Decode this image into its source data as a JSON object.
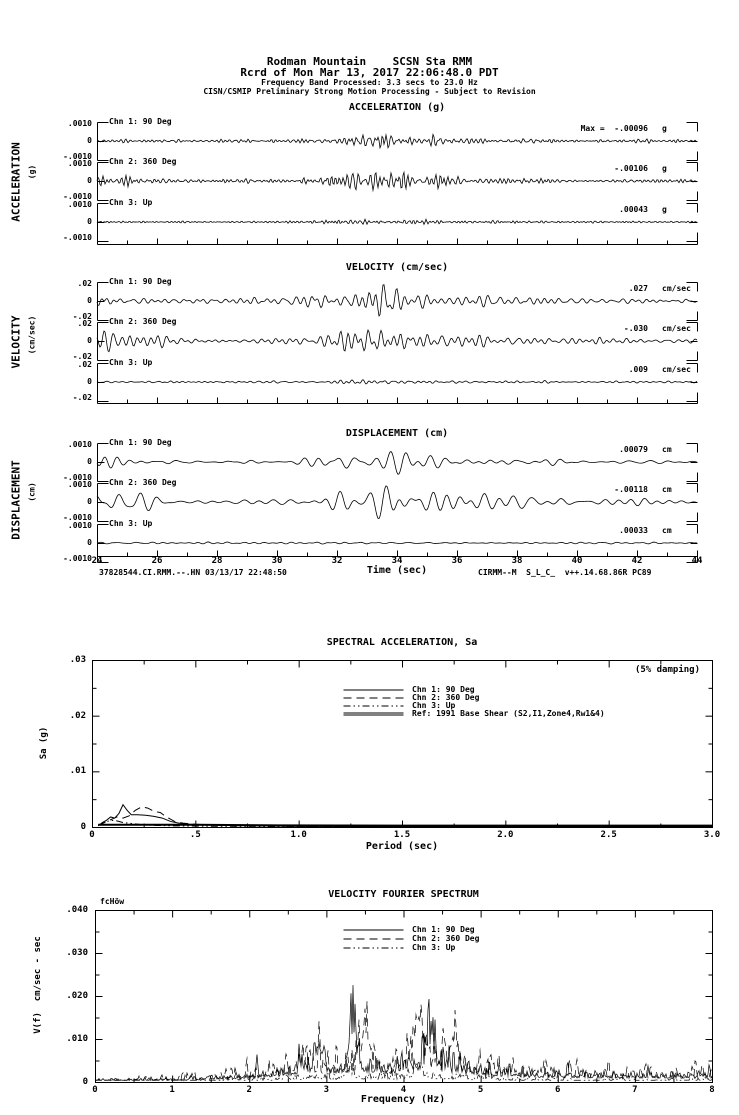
{
  "colors": {
    "background": "#ffffff",
    "ink": "#000000"
  },
  "header": {
    "line1": "Rodman Mountain    SCSN Sta RMM",
    "line2": "Rcrd of Mon Mar 13, 2017 22:06:48.0 PDT",
    "line3": "Frequency Band Processed: 3.3 secs to 23.0 Hz",
    "line4": "CISN/CSMIP Preliminary Strong Motion Processing - Subject to Revision"
  },
  "footer": {
    "left": "37828544.CI.RMM.--.HN 03/13/17 22:48:50",
    "right": "CIRMM--M  S_L_C_  v++.14.68.86R PC89"
  },
  "chart_data": [
    {
      "type": "line",
      "id": "acceleration",
      "title": "ACCELERATION (g)",
      "side_label": "ACCELERATION",
      "side_units": "(g)",
      "x_range": [
        24,
        44
      ],
      "y_range": [
        -0.001,
        0.001
      ],
      "y_tick_labels": [
        ".0010",
        "0",
        "-.0010"
      ],
      "channels": [
        {
          "label": "Chn 1: 90 Deg",
          "peak_text": "Max =  -.00096",
          "peak_value": -0.00096,
          "units": "g",
          "render": {
            "seed": 101,
            "amp": 11,
            "fmin": 70,
            "fmax": 180,
            "K": 60,
            "base": 0.25,
            "bursts": [
              [
                0.44,
                0.04,
                0.8
              ],
              [
                0.53,
                0.1,
                0.35
              ]
            ]
          }
        },
        {
          "label": "Chn 2: 360 Deg",
          "peak_text": "-.00106",
          "peak_value": -0.00106,
          "units": "g",
          "render": {
            "seed": 202,
            "amp": 13,
            "fmin": 70,
            "fmax": 180,
            "K": 60,
            "base": 0.25,
            "bursts": [
              [
                0.02,
                0.03,
                0.5
              ],
              [
                0.44,
                0.045,
                0.85
              ],
              [
                0.53,
                0.1,
                0.35
              ]
            ]
          }
        },
        {
          "label": "Chn 3: Up",
          "peak_text": ".00043",
          "peak_value": 0.00043,
          "units": "g",
          "render": {
            "seed": 303,
            "amp": 4.5,
            "fmin": 80,
            "fmax": 200,
            "K": 60,
            "base": 0.3,
            "bursts": [
              [
                0.44,
                0.05,
                0.55
              ],
              [
                0.53,
                0.1,
                0.25
              ]
            ]
          }
        }
      ]
    },
    {
      "type": "line",
      "id": "velocity",
      "title": "VELOCITY (cm/sec)",
      "side_label": "VELOCITY",
      "side_units": "(cm/sec)",
      "x_range": [
        24,
        44
      ],
      "y_range": [
        -0.02,
        0.02
      ],
      "y_tick_labels": [
        ".02",
        "0",
        "-.02"
      ],
      "channels": [
        {
          "label": "Chn 1: 90 Deg",
          "peak_text": ".027",
          "peak_value": 0.027,
          "units": "cm/sec",
          "render": {
            "seed": 404,
            "amp": 15,
            "fmin": 35,
            "fmax": 95,
            "K": 50,
            "base": 0.22,
            "bursts": [
              [
                0.005,
                0.015,
                0.9
              ],
              [
                0.44,
                0.05,
                0.85
              ],
              [
                0.55,
                0.12,
                0.4
              ]
            ]
          }
        },
        {
          "label": "Chn 2: 360 Deg",
          "peak_text": "-.030",
          "peak_value": -0.03,
          "units": "cm/sec",
          "render": {
            "seed": 505,
            "amp": 18,
            "fmin": 35,
            "fmax": 95,
            "K": 50,
            "base": 0.22,
            "bursts": [
              [
                0.02,
                0.05,
                0.75
              ],
              [
                0.45,
                0.05,
                0.9
              ],
              [
                0.56,
                0.12,
                0.45
              ]
            ]
          }
        },
        {
          "label": "Chn 3: Up",
          "peak_text": ".009",
          "peak_value": 0.009,
          "units": "cm/sec",
          "render": {
            "seed": 606,
            "amp": 5,
            "fmin": 40,
            "fmax": 110,
            "K": 50,
            "base": 0.3,
            "bursts": [
              [
                0.44,
                0.05,
                0.5
              ]
            ]
          }
        }
      ]
    },
    {
      "type": "line",
      "id": "displacement",
      "title": "DISPLACEMENT (cm)",
      "side_label": "DISPLACEMENT",
      "side_units": "(cm)",
      "x_range": [
        24,
        44
      ],
      "y_range": [
        -0.001,
        0.001
      ],
      "y_tick_labels": [
        ".0010",
        "0",
        "-.0010"
      ],
      "xlabel": "Time (sec)",
      "x_tick_labels": [
        "24",
        "26",
        "28",
        "30",
        "32",
        "34",
        "36",
        "38",
        "40",
        "42",
        "44"
      ],
      "channels": [
        {
          "label": "Chn 1: 90 Deg",
          "peak_text": ".00079",
          "peak_value": 0.00079,
          "units": "cm",
          "render": {
            "seed": 707,
            "amp": 13,
            "fmin": 20,
            "fmax": 55,
            "K": 36,
            "base": 0.22,
            "bursts": [
              [
                0.01,
                0.02,
                0.6
              ],
              [
                0.43,
                0.05,
                0.85
              ],
              [
                0.55,
                0.12,
                0.45
              ]
            ]
          }
        },
        {
          "label": "Chn 2: 360 Deg",
          "peak_text": "-.00118",
          "peak_value": -0.00118,
          "units": "cm",
          "render": {
            "seed": 808,
            "amp": 17,
            "fmin": 20,
            "fmax": 55,
            "K": 36,
            "base": 0.22,
            "bursts": [
              [
                0.02,
                0.05,
                0.7
              ],
              [
                0.45,
                0.05,
                0.9
              ],
              [
                0.57,
                0.12,
                0.45
              ]
            ]
          }
        },
        {
          "label": "Chn 3: Up",
          "peak_text": ".00033",
          "peak_value": 0.00033,
          "units": "cm",
          "render": {
            "seed": 909,
            "amp": 3,
            "fmin": 25,
            "fmax": 70,
            "K": 36,
            "base": 0.35,
            "bursts": [
              [
                0.44,
                0.06,
                0.45
              ]
            ]
          }
        }
      ]
    },
    {
      "type": "line",
      "id": "spectral-acceleration",
      "title": "SPECTRAL ACCELERATION, Sa",
      "damping_note": "(5% damping)",
      "ylabel": "Sa (g)",
      "xlabel": "Period (sec)",
      "xlim": [
        0,
        3
      ],
      "ylim": [
        0,
        0.03
      ],
      "x_tick_values": [
        0,
        0.5,
        1.0,
        1.5,
        2.0,
        2.5,
        3.0
      ],
      "x_tick_labels": [
        "0",
        ".5",
        "1.0",
        "1.5",
        "2.0",
        "2.5",
        "3.0"
      ],
      "y_tick_values": [
        0.03,
        0.02,
        0.01,
        0
      ],
      "y_tick_labels": [
        ".03",
        ".02",
        ".01",
        "0"
      ],
      "legend": [
        {
          "label": "Chn 1: 90 Deg",
          "style": "solid"
        },
        {
          "label": "Chn 2: 360 Deg",
          "style": "dashed"
        },
        {
          "label": "Chn 3: Up",
          "style": "dashdotdot"
        },
        {
          "label": "Ref: 1991 Base Shear (S2,I1,Zone4,Rw1&4)",
          "style": "double"
        }
      ],
      "series": [
        {
          "name": "Chn 1: 90 Deg",
          "style": "solid",
          "points": [
            [
              0.03,
              0.0002
            ],
            [
              0.05,
              0.0008
            ],
            [
              0.07,
              0.0012
            ],
            [
              0.09,
              0.0018
            ],
            [
              0.11,
              0.0016
            ],
            [
              0.13,
              0.0024
            ],
            [
              0.15,
              0.004
            ],
            [
              0.17,
              0.003
            ],
            [
              0.19,
              0.0022
            ],
            [
              0.22,
              0.0022
            ],
            [
              0.26,
              0.0021
            ],
            [
              0.3,
              0.0019
            ],
            [
              0.34,
              0.0016
            ],
            [
              0.38,
              0.001
            ],
            [
              0.42,
              0.0007
            ],
            [
              0.47,
              0.0005
            ],
            [
              0.55,
              0.0004
            ],
            [
              0.65,
              0.0003
            ],
            [
              0.8,
              0.0002
            ],
            [
              1.0,
              0.00012
            ],
            [
              1.5,
              6e-05
            ],
            [
              2.0,
              4e-05
            ],
            [
              3.0,
              3e-05
            ]
          ]
        },
        {
          "name": "Chn 2: 360 Deg",
          "style": "dashed",
          "points": [
            [
              0.03,
              0.0003
            ],
            [
              0.06,
              0.0008
            ],
            [
              0.09,
              0.0013
            ],
            [
              0.12,
              0.0018
            ],
            [
              0.15,
              0.0016
            ],
            [
              0.18,
              0.002
            ],
            [
              0.21,
              0.003
            ],
            [
              0.24,
              0.0036
            ],
            [
              0.27,
              0.0034
            ],
            [
              0.3,
              0.0028
            ],
            [
              0.33,
              0.0026
            ],
            [
              0.36,
              0.0018
            ],
            [
              0.4,
              0.001
            ],
            [
              0.44,
              0.0007
            ],
            [
              0.5,
              0.0005
            ],
            [
              0.6,
              0.0003
            ],
            [
              0.75,
              0.0002
            ],
            [
              1.0,
              0.00012
            ],
            [
              1.5,
              6e-05
            ],
            [
              2.0,
              4e-05
            ],
            [
              3.0,
              3e-05
            ]
          ]
        },
        {
          "name": "Chn 3: Up",
          "style": "dashdotdot",
          "points": [
            [
              0.03,
              0.0003
            ],
            [
              0.06,
              0.0008
            ],
            [
              0.09,
              0.0012
            ],
            [
              0.12,
              0.0011
            ],
            [
              0.15,
              0.0008
            ],
            [
              0.2,
              0.0006
            ],
            [
              0.25,
              0.0004
            ],
            [
              0.3,
              0.0003
            ],
            [
              0.4,
              0.0002
            ],
            [
              0.55,
              0.00015
            ],
            [
              0.8,
              0.0001
            ],
            [
              1.2,
              6e-05
            ],
            [
              3.0,
              3e-05
            ]
          ]
        },
        {
          "name": "Ref: 1991 Base Shear (S2,I1,Zone4,Rw1&4)",
          "style": "double",
          "points": [
            [
              0.03,
              0.0004
            ],
            [
              0.5,
              0.0004
            ],
            [
              0.9,
              0.0003
            ],
            [
              1.5,
              0.00025
            ],
            [
              3.0,
              0.00025
            ]
          ]
        }
      ]
    },
    {
      "type": "line",
      "id": "velocity-fourier-spectrum",
      "title": "VELOCITY FOURIER SPECTRUM",
      "corner_note": "fcHöw",
      "ylabel": "V(f)  cm/sec - sec",
      "xlabel": "Frequency (Hz)",
      "xlim": [
        0,
        8
      ],
      "ylim": [
        0,
        0.04
      ],
      "x_tick_values": [
        0,
        1,
        2,
        3,
        4,
        5,
        6,
        7,
        8
      ],
      "x_tick_labels": [
        "0",
        "1",
        "2",
        "3",
        "4",
        "5",
        "6",
        "7",
        "8"
      ],
      "y_tick_values": [
        0.04,
        0.03,
        0.02,
        0.01,
        0
      ],
      "y_tick_labels": [
        ".040",
        ".030",
        ".020",
        ".010",
        "0"
      ],
      "legend": [
        {
          "label": "Chn 1: 90 Deg",
          "style": "solid"
        },
        {
          "label": "Chn 2: 360 Deg",
          "style": "dashed"
        },
        {
          "label": "Chn 3: Up",
          "style": "dashdotdot"
        }
      ],
      "envelope": [
        [
          0,
          0.001
        ],
        [
          0.5,
          0.0015
        ],
        [
          1,
          0.002
        ],
        [
          1.5,
          0.003
        ],
        [
          2,
          0.0045
        ],
        [
          2.5,
          0.008
        ],
        [
          2.8,
          0.012
        ],
        [
          3.1,
          0.011
        ],
        [
          3.4,
          0.014
        ],
        [
          3.8,
          0.01
        ],
        [
          4.2,
          0.016
        ],
        [
          4.6,
          0.012
        ],
        [
          5,
          0.009
        ],
        [
          5.5,
          0.006
        ],
        [
          6,
          0.0055
        ],
        [
          6.5,
          0.005
        ],
        [
          7,
          0.0045
        ],
        [
          7.5,
          0.0045
        ],
        [
          8,
          0.005
        ]
      ],
      "series": [
        {
          "name": "Chn 1: 90 Deg",
          "style": "solid",
          "render": {
            "seed": 1501,
            "scale": 1.0,
            "peaks": [
              [
                2.9,
                0.016
              ],
              [
                3.35,
                0.022
              ],
              [
                4.35,
                0.017
              ]
            ]
          }
        },
        {
          "name": "Chn 2: 360 Deg",
          "style": "dashed",
          "render": {
            "seed": 1502,
            "scale": 1.0,
            "peaks": [
              [
                3.5,
                0.018
              ],
              [
                4.2,
                0.029
              ],
              [
                4.65,
                0.015
              ]
            ]
          }
        },
        {
          "name": "Chn 3: Up",
          "style": "dashdotdot",
          "render": {
            "seed": 1503,
            "scale": 0.28,
            "peaks": [
              [
                3.3,
                0.004
              ],
              [
                4.2,
                0.005
              ]
            ]
          }
        }
      ]
    }
  ]
}
